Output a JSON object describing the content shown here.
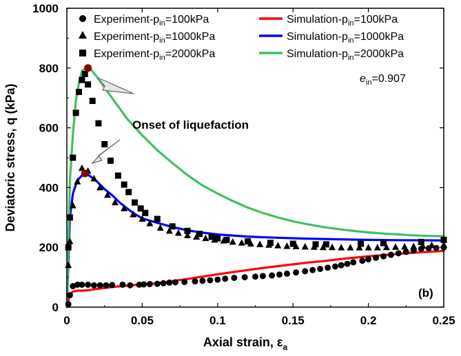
{
  "chart_data": {
    "type": "scatter",
    "xlabel": "Axial strain, εa",
    "ylabel": "Deviatoric stress, q (kPa)",
    "xlim": [
      0,
      0.25
    ],
    "ylim": [
      0,
      1000
    ],
    "xticks": [
      "0",
      "0.05",
      "0.1",
      "0.15",
      "0.2",
      "0.25"
    ],
    "yticks": [
      "0",
      "200",
      "400",
      "600",
      "800",
      "1000"
    ],
    "legend_position": "top",
    "annotations": {
      "onset": "Onset of liquefaction",
      "e_in": "ein=0.907",
      "panel": "(b)"
    },
    "experiment_series": [
      {
        "name": "Experiment-pin=100kPa",
        "marker": "circle",
        "points": [
          [
            0.001,
            10
          ],
          [
            0.002,
            40
          ],
          [
            0.004,
            70
          ],
          [
            0.007,
            75
          ],
          [
            0.01,
            75
          ],
          [
            0.014,
            75
          ],
          [
            0.018,
            73
          ],
          [
            0.022,
            73
          ],
          [
            0.026,
            73
          ],
          [
            0.03,
            74
          ],
          [
            0.037,
            75
          ],
          [
            0.042,
            73
          ],
          [
            0.048,
            75
          ],
          [
            0.051,
            76
          ],
          [
            0.055,
            77
          ],
          [
            0.06,
            78
          ],
          [
            0.064,
            80
          ],
          [
            0.068,
            82
          ],
          [
            0.072,
            83
          ],
          [
            0.078,
            84
          ],
          [
            0.085,
            86
          ],
          [
            0.09,
            88
          ],
          [
            0.095,
            90
          ],
          [
            0.1,
            92
          ],
          [
            0.105,
            95
          ],
          [
            0.111,
            98
          ],
          [
            0.118,
            100
          ],
          [
            0.125,
            102
          ],
          [
            0.13,
            104
          ],
          [
            0.136,
            106
          ],
          [
            0.141,
            109
          ],
          [
            0.146,
            112
          ],
          [
            0.152,
            116
          ],
          [
            0.158,
            120
          ],
          [
            0.163,
            124
          ],
          [
            0.168,
            128
          ],
          [
            0.173,
            132
          ],
          [
            0.178,
            136
          ],
          [
            0.182,
            140
          ],
          [
            0.186,
            145
          ],
          [
            0.19,
            150
          ],
          [
            0.196,
            155
          ],
          [
            0.2,
            160
          ],
          [
            0.205,
            165
          ],
          [
            0.21,
            170
          ],
          [
            0.215,
            175
          ],
          [
            0.22,
            180
          ],
          [
            0.225,
            185
          ],
          [
            0.23,
            190
          ],
          [
            0.235,
            195
          ],
          [
            0.24,
            197
          ],
          [
            0.245,
            198
          ],
          [
            0.25,
            200
          ]
        ]
      },
      {
        "name": "Experiment-pin=1000kPa",
        "marker": "triangle",
        "points": [
          [
            0.001,
            140
          ],
          [
            0.002,
            220
          ],
          [
            0.004,
            340
          ],
          [
            0.007,
            420
          ],
          [
            0.01,
            465
          ],
          [
            0.014,
            455
          ],
          [
            0.018,
            430
          ],
          [
            0.022,
            400
          ],
          [
            0.027,
            375
          ],
          [
            0.032,
            350
          ],
          [
            0.038,
            330
          ],
          [
            0.044,
            310
          ],
          [
            0.05,
            295
          ],
          [
            0.055,
            280
          ],
          [
            0.062,
            265
          ],
          [
            0.068,
            255
          ],
          [
            0.074,
            248
          ],
          [
            0.08,
            240
          ],
          [
            0.086,
            235
          ],
          [
            0.092,
            230
          ],
          [
            0.098,
            225
          ],
          [
            0.104,
            222
          ],
          [
            0.11,
            218
          ],
          [
            0.116,
            215
          ],
          [
            0.122,
            212
          ],
          [
            0.128,
            210
          ],
          [
            0.134,
            208
          ],
          [
            0.14,
            206
          ],
          [
            0.146,
            204
          ],
          [
            0.152,
            203
          ],
          [
            0.158,
            202
          ],
          [
            0.164,
            201
          ],
          [
            0.17,
            200
          ],
          [
            0.176,
            200
          ],
          [
            0.182,
            199
          ],
          [
            0.188,
            199
          ],
          [
            0.194,
            199
          ],
          [
            0.2,
            199
          ],
          [
            0.206,
            199
          ],
          [
            0.212,
            200
          ],
          [
            0.218,
            201
          ],
          [
            0.224,
            202
          ],
          [
            0.23,
            203
          ],
          [
            0.236,
            205
          ],
          [
            0.242,
            207
          ],
          [
            0.25,
            208
          ]
        ]
      },
      {
        "name": "Experiment-pin=2000kPa",
        "marker": "square",
        "points": [
          [
            0.001,
            200
          ],
          [
            0.002,
            300
          ],
          [
            0.004,
            500
          ],
          [
            0.006,
            650
          ],
          [
            0.008,
            720
          ],
          [
            0.01,
            760
          ],
          [
            0.012,
            780
          ],
          [
            0.014,
            745
          ],
          [
            0.017,
            690
          ],
          [
            0.021,
            615
          ],
          [
            0.025,
            545
          ],
          [
            0.029,
            490
          ],
          [
            0.034,
            440
          ],
          [
            0.038,
            410
          ],
          [
            0.041,
            385
          ],
          [
            0.045,
            350
          ],
          [
            0.049,
            330
          ],
          [
            0.052,
            315
          ],
          [
            0.06,
            295
          ],
          [
            0.07,
            270
          ],
          [
            0.08,
            255
          ],
          [
            0.088,
            245
          ],
          [
            0.096,
            235
          ],
          [
            0.1,
            230
          ],
          [
            0.106,
            225
          ],
          [
            0.12,
            220
          ],
          [
            0.135,
            215
          ],
          [
            0.15,
            212
          ],
          [
            0.165,
            210
          ],
          [
            0.172,
            210
          ],
          [
            0.195,
            212
          ],
          [
            0.21,
            214
          ],
          [
            0.235,
            218
          ],
          [
            0.25,
            225
          ]
        ]
      }
    ],
    "simulation_series": [
      {
        "name": "Simulation-pin=100kPa",
        "color": "#ff0000",
        "points": [
          [
            0,
            0
          ],
          [
            0.002,
            40
          ],
          [
            0.004,
            52
          ],
          [
            0.007,
            55
          ],
          [
            0.01,
            55
          ],
          [
            0.015,
            57
          ],
          [
            0.02,
            61
          ],
          [
            0.03,
            67
          ],
          [
            0.04,
            72
          ],
          [
            0.05,
            76
          ],
          [
            0.06,
            80
          ],
          [
            0.07,
            87
          ],
          [
            0.08,
            94
          ],
          [
            0.09,
            102
          ],
          [
            0.1,
            110
          ],
          [
            0.11,
            117
          ],
          [
            0.12,
            124
          ],
          [
            0.13,
            131
          ],
          [
            0.14,
            137
          ],
          [
            0.15,
            143
          ],
          [
            0.16,
            149
          ],
          [
            0.17,
            154
          ],
          [
            0.18,
            160
          ],
          [
            0.19,
            165
          ],
          [
            0.2,
            170
          ],
          [
            0.21,
            174
          ],
          [
            0.22,
            178
          ],
          [
            0.23,
            182
          ],
          [
            0.24,
            185
          ],
          [
            0.25,
            188
          ]
        ]
      },
      {
        "name": "Simulation-pin=1000kPa",
        "color": "#0000ff",
        "points": [
          [
            0,
            0
          ],
          [
            0.002,
            300
          ],
          [
            0.004,
            380
          ],
          [
            0.006,
            410
          ],
          [
            0.008,
            430
          ],
          [
            0.01,
            440
          ],
          [
            0.012,
            445
          ],
          [
            0.015,
            440
          ],
          [
            0.02,
            420
          ],
          [
            0.025,
            395
          ],
          [
            0.03,
            375
          ],
          [
            0.035,
            350
          ],
          [
            0.04,
            330
          ],
          [
            0.045,
            312
          ],
          [
            0.05,
            297
          ],
          [
            0.06,
            282
          ],
          [
            0.07,
            268
          ],
          [
            0.08,
            257
          ],
          [
            0.09,
            249
          ],
          [
            0.1,
            243
          ],
          [
            0.12,
            236
          ],
          [
            0.14,
            232
          ],
          [
            0.16,
            229
          ],
          [
            0.18,
            227
          ],
          [
            0.2,
            225
          ],
          [
            0.22,
            224
          ],
          [
            0.25,
            223
          ]
        ]
      },
      {
        "name": "Simulation-pin=2000kPa",
        "color": "#40c060",
        "points": [
          [
            0,
            0
          ],
          [
            0.002,
            420
          ],
          [
            0.004,
            580
          ],
          [
            0.006,
            690
          ],
          [
            0.008,
            750
          ],
          [
            0.01,
            790
          ],
          [
            0.013,
            800
          ],
          [
            0.016,
            795
          ],
          [
            0.02,
            770
          ],
          [
            0.025,
            735
          ],
          [
            0.03,
            700
          ],
          [
            0.035,
            665
          ],
          [
            0.04,
            630
          ],
          [
            0.05,
            575
          ],
          [
            0.06,
            525
          ],
          [
            0.07,
            482
          ],
          [
            0.08,
            442
          ],
          [
            0.09,
            407
          ],
          [
            0.1,
            380
          ],
          [
            0.11,
            355
          ],
          [
            0.12,
            333
          ],
          [
            0.13,
            315
          ],
          [
            0.14,
            300
          ],
          [
            0.15,
            287
          ],
          [
            0.16,
            277
          ],
          [
            0.17,
            268
          ],
          [
            0.18,
            261
          ],
          [
            0.19,
            255
          ],
          [
            0.2,
            250
          ],
          [
            0.21,
            246
          ],
          [
            0.22,
            243
          ],
          [
            0.23,
            240
          ],
          [
            0.24,
            238
          ],
          [
            0.25,
            237
          ]
        ]
      }
    ],
    "onset_points": [
      [
        0.014,
        800
      ],
      [
        0.012,
        447
      ]
    ]
  }
}
